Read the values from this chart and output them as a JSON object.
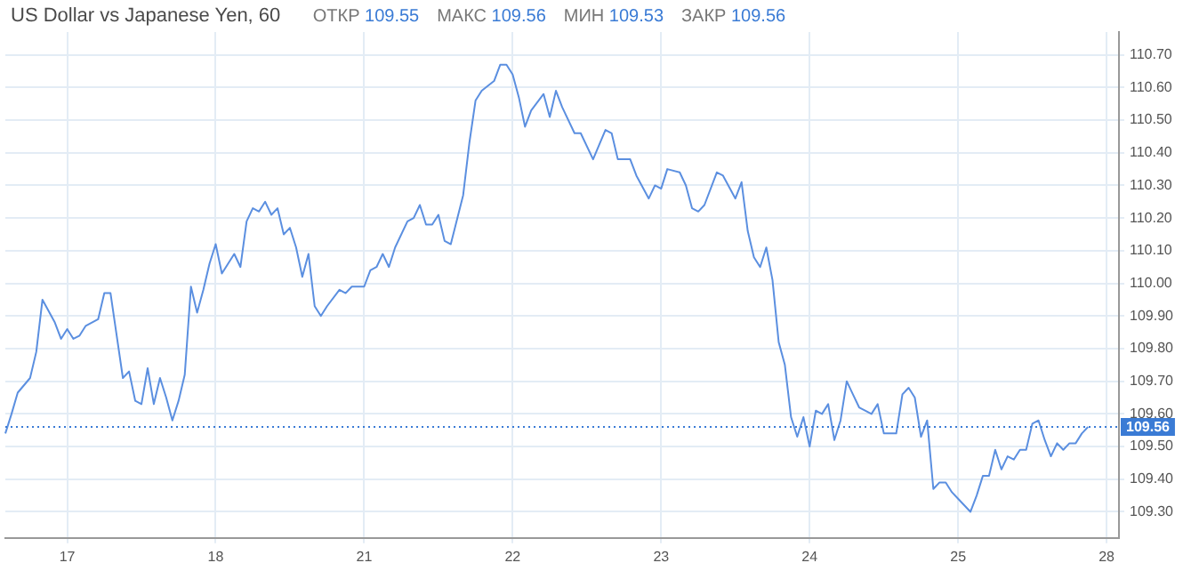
{
  "chart_data": {
    "type": "line",
    "title": "US Dollar vs Japanese Yen, 60",
    "annotations": [
      "ОТКР 109.55",
      "МАКС 109.56",
      "МИН 109.53",
      "ЗАКР 109.56"
    ],
    "categories": [
      null,
      null,
      null,
      null,
      null,
      null,
      null,
      null,
      null,
      null,
      "17",
      null,
      null,
      null,
      null,
      null,
      null,
      null,
      null,
      null,
      null,
      null,
      null,
      null,
      null,
      null,
      null,
      null,
      null,
      null,
      null,
      null,
      null,
      null,
      "18",
      null,
      null,
      null,
      null,
      null,
      null,
      null,
      null,
      null,
      null,
      null,
      null,
      null,
      null,
      null,
      null,
      null,
      null,
      null,
      null,
      null,
      null,
      null,
      "21",
      null,
      null,
      null,
      null,
      null,
      null,
      null,
      null,
      null,
      null,
      null,
      null,
      null,
      null,
      null,
      null,
      null,
      null,
      null,
      null,
      null,
      null,
      null,
      "22",
      null,
      null,
      null,
      null,
      null,
      null,
      null,
      null,
      null,
      null,
      null,
      null,
      null,
      null,
      null,
      null,
      null,
      null,
      null,
      null,
      null,
      null,
      null,
      "23",
      null,
      null,
      null,
      null,
      null,
      null,
      null,
      null,
      null,
      null,
      null,
      null,
      null,
      null,
      null,
      null,
      null,
      null,
      null,
      null,
      null,
      null,
      null,
      "24",
      null,
      null,
      null,
      null,
      null,
      null,
      null,
      null,
      null,
      null,
      null,
      null,
      null,
      null,
      null,
      null,
      null,
      null,
      null,
      null,
      null,
      null,
      null,
      "25",
      null,
      null,
      null,
      null,
      null,
      null,
      null,
      null,
      null,
      null,
      null,
      null,
      null,
      null,
      null,
      null,
      null,
      null,
      null,
      null,
      null,
      null,
      null,
      "28",
      null,
      null
    ],
    "series": [
      {
        "color": "#5b8fe0",
        "values": [
          109.54,
          109.6,
          109.665,
          null,
          109.71,
          109.79,
          109.95,
          null,
          109.88,
          109.83,
          109.86,
          109.83,
          109.84,
          109.87,
          null,
          109.89,
          109.97,
          109.97,
          109.84,
          109.71,
          109.73,
          109.64,
          109.63,
          109.74,
          109.63,
          109.71,
          109.65,
          109.58,
          109.64,
          109.72,
          109.99,
          109.91,
          109.98,
          110.06,
          110.12,
          110.03,
          110.06,
          110.09,
          110.05,
          110.19,
          110.23,
          110.22,
          110.25,
          110.21,
          110.23,
          110.15,
          110.17,
          110.11,
          110.02,
          110.09,
          109.93,
          109.9,
          109.93,
          null,
          109.98,
          109.97,
          109.99,
          null,
          109.99,
          110.04,
          110.05,
          110.09,
          110.05,
          110.11,
          null,
          110.19,
          110.2,
          110.24,
          110.18,
          110.18,
          110.21,
          110.13,
          110.12,
          null,
          110.27,
          110.43,
          110.56,
          110.59,
          null,
          110.62,
          110.67,
          110.67,
          110.64,
          110.57,
          110.48,
          110.53,
          null,
          110.58,
          110.51,
          110.59,
          110.54,
          null,
          110.46,
          110.46,
          null,
          110.38,
          null,
          110.47,
          110.46,
          110.38,
          null,
          110.38,
          110.33,
          null,
          110.26,
          110.3,
          110.29,
          110.35,
          null,
          110.34,
          110.3,
          110.23,
          110.22,
          110.24,
          null,
          110.34,
          110.33,
          null,
          110.26,
          110.31,
          110.16,
          110.08,
          110.05,
          110.11,
          110.01,
          109.82,
          109.75,
          109.59,
          109.53,
          109.59,
          109.5,
          109.61,
          109.6,
          109.63,
          109.52,
          109.58,
          109.7,
          109.66,
          109.62,
          null,
          109.6,
          109.63,
          109.54,
          null,
          109.54,
          109.66,
          109.68,
          109.65,
          109.53,
          109.58,
          109.37,
          109.39,
          109.39,
          109.36,
          109.34,
          null,
          109.3,
          109.35,
          109.41,
          109.41,
          109.49,
          109.43,
          109.47,
          109.46,
          109.49,
          109.49,
          109.57,
          109.58,
          109.52,
          109.47,
          109.51,
          109.49,
          109.51,
          109.51,
          109.54,
          109.56,
          null,
          null,
          null,
          null,
          null
        ]
      }
    ],
    "ylim": [
      109.22,
      110.77
    ],
    "yticks": [
      {
        "value": 109.3,
        "label": "109.30"
      },
      {
        "value": 109.4,
        "label": "109.40"
      },
      {
        "value": 109.5,
        "label": "109.50"
      },
      {
        "value": 109.6,
        "label": "109.60"
      },
      {
        "value": 109.7,
        "label": "109.70"
      },
      {
        "value": 109.8,
        "label": "109.80"
      },
      {
        "value": 109.9,
        "label": "109.90"
      },
      {
        "value": 110.0,
        "label": "110.00"
      },
      {
        "value": 110.1,
        "label": "110.10"
      },
      {
        "value": 110.2,
        "label": "110.20"
      },
      {
        "value": 110.3,
        "label": "110.30"
      },
      {
        "value": 110.4,
        "label": "110.40"
      },
      {
        "value": 110.5,
        "label": "110.50"
      },
      {
        "value": 110.6,
        "label": "110.60"
      },
      {
        "value": 110.7,
        "label": "110.70"
      }
    ],
    "ref_lines": [
      {
        "axis": "y",
        "value": 109.56,
        "label": "109.56",
        "color": "#3a7bd5",
        "line_style": "dotted"
      }
    ],
    "grid": true,
    "legend": false,
    "marker": "none",
    "line_style": "solid"
  }
}
